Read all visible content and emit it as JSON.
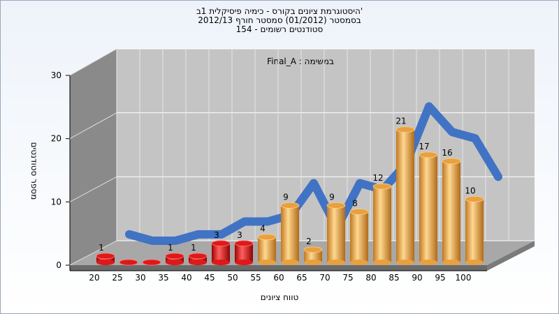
{
  "chart_data": {
    "type": "bar",
    "title": "היסטוגרמת ציונים בקורס - כימיה פיסיקלית 1ב'",
    "subtitle": "בסמסטר  (01/2012)  סמסטר חורף 2012/13",
    "subtitle2": "154 - סטודנטים רשומים",
    "annotation": "Final_A : במשימה",
    "x_label": "טווח ציונים",
    "y_label": "מספר סטודנטים",
    "categories": [
      "20",
      "25",
      "30",
      "35",
      "40",
      "45",
      "50",
      "55",
      "60",
      "65",
      "70",
      "75",
      "80",
      "85",
      "90",
      "95",
      "100"
    ],
    "values": [
      1,
      0,
      0,
      1,
      1,
      3,
      3,
      4,
      9,
      2,
      9,
      8,
      12,
      21,
      17,
      16,
      10
    ],
    "bar_colors": [
      "#e01818",
      "#e01818",
      "#e01818",
      "#e01818",
      "#e01818",
      "#e01818",
      "#e01818",
      "#e8a040",
      "#e8a040",
      "#e8a040",
      "#e8a040",
      "#e8a040",
      "#e8a040",
      "#e8a040",
      "#e8a040",
      "#e8a040",
      "#e8a040"
    ],
    "line_color": "#3a6fc4",
    "ylim": [
      0,
      30
    ],
    "yticks": [
      0,
      10,
      20,
      30
    ],
    "grid": true
  }
}
